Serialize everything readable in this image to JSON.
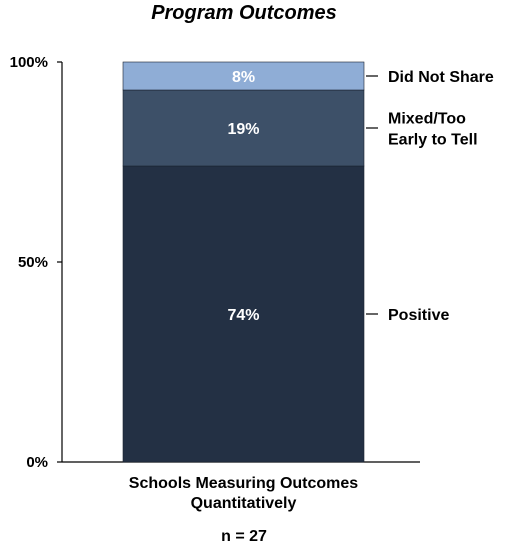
{
  "chart_data": {
    "type": "bar",
    "stacked": true,
    "title": "Program Outcomes",
    "categories": [
      "Schools Measuring Outcomes Quantitatively"
    ],
    "category_label_lines": [
      "Schools Measuring Outcomes",
      "Quantitatively"
    ],
    "series": [
      {
        "name": "Positive",
        "values": [
          74
        ],
        "label": "74%",
        "color": "#233044"
      },
      {
        "name": "Mixed/Too Early to Tell",
        "legend_lines": [
          "Mixed/Too",
          "Early to Tell"
        ],
        "values": [
          19
        ],
        "label": "19%",
        "color": "#3d5068"
      },
      {
        "name": "Did Not Share",
        "values": [
          8
        ],
        "label": "8%",
        "color": "#8fadd6"
      }
    ],
    "ylim": [
      0,
      100
    ],
    "yticks": [
      "0%",
      "50%",
      "100%"
    ],
    "ytick_values": [
      0,
      50,
      100
    ],
    "grid": false,
    "legend_placement": "right",
    "annotation": "n = 27"
  }
}
